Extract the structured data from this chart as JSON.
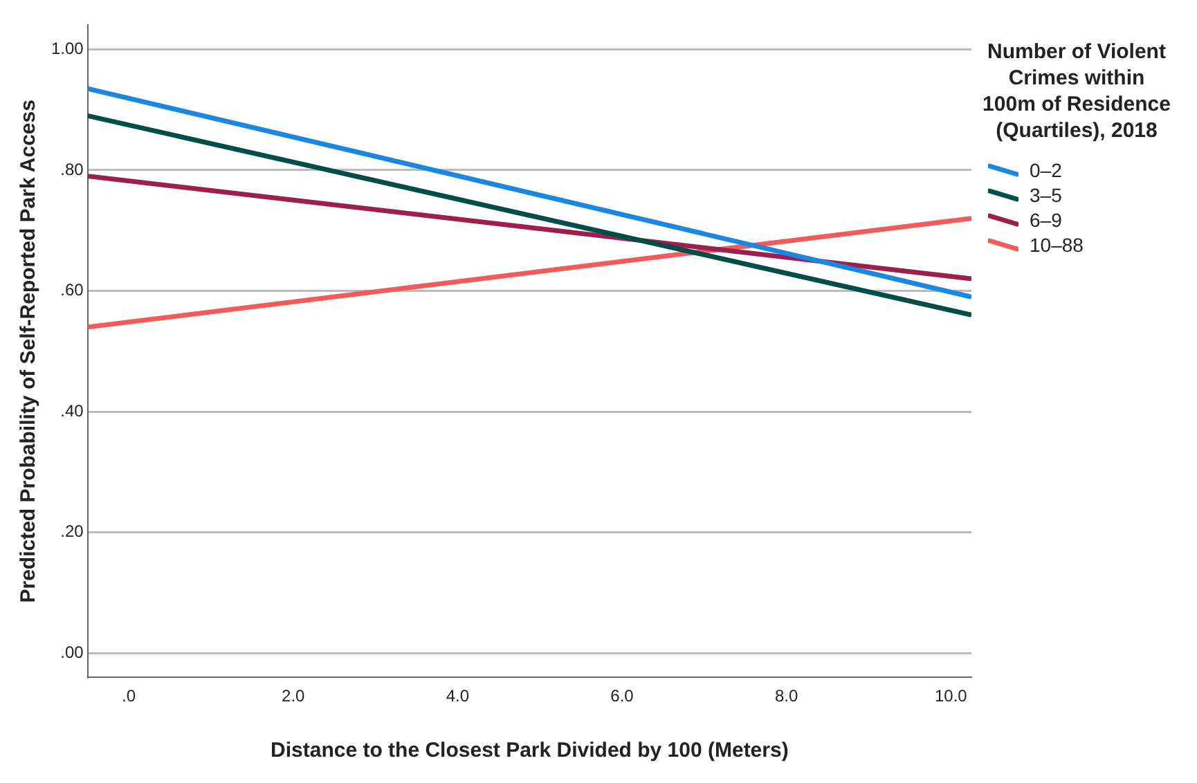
{
  "chart_data": {
    "type": "line",
    "xlabel": "Distance to the Closest Park Divided by 100 (Meters)",
    "ylabel": "Predicted Probability of Self-Reported Park Access",
    "legend_title": "Number of Violent Crimes within 100m of Residence (Quartiles), 2018",
    "x": [
      -0.5,
      10.25
    ],
    "series": [
      {
        "name": "0–2",
        "color": "#1a87e0",
        "values": [
          0.935,
          0.59
        ]
      },
      {
        "name": "3–5",
        "color": "#004d4a",
        "values": [
          0.89,
          0.56
        ]
      },
      {
        "name": "6–9",
        "color": "#9e1f4e",
        "values": [
          0.79,
          0.62
        ]
      },
      {
        "name": "10–88",
        "color": "#f25b5b",
        "values": [
          0.54,
          0.72
        ]
      }
    ],
    "xlim": [
      -0.5,
      10.25
    ],
    "xticks": [
      {
        "value": 0,
        "label": ".0"
      },
      {
        "value": 2,
        "label": "2.0"
      },
      {
        "value": 4,
        "label": "4.0"
      },
      {
        "value": 6,
        "label": "6.0"
      },
      {
        "value": 8,
        "label": "8.0"
      },
      {
        "value": 10,
        "label": "10.0"
      }
    ],
    "ylim": [
      -0.04,
      1.04
    ],
    "yticks": [
      {
        "value": 0,
        "label": ".00"
      },
      {
        "value": 0.2,
        "label": ".20"
      },
      {
        "value": 0.4,
        "label": ".40"
      },
      {
        "value": 0.6,
        "label": ".60"
      },
      {
        "value": 0.8,
        "label": ".80"
      },
      {
        "value": 1,
        "label": "1.00"
      }
    ],
    "grid": "y",
    "legend": "right",
    "marker": "none",
    "line_style": "solid"
  }
}
